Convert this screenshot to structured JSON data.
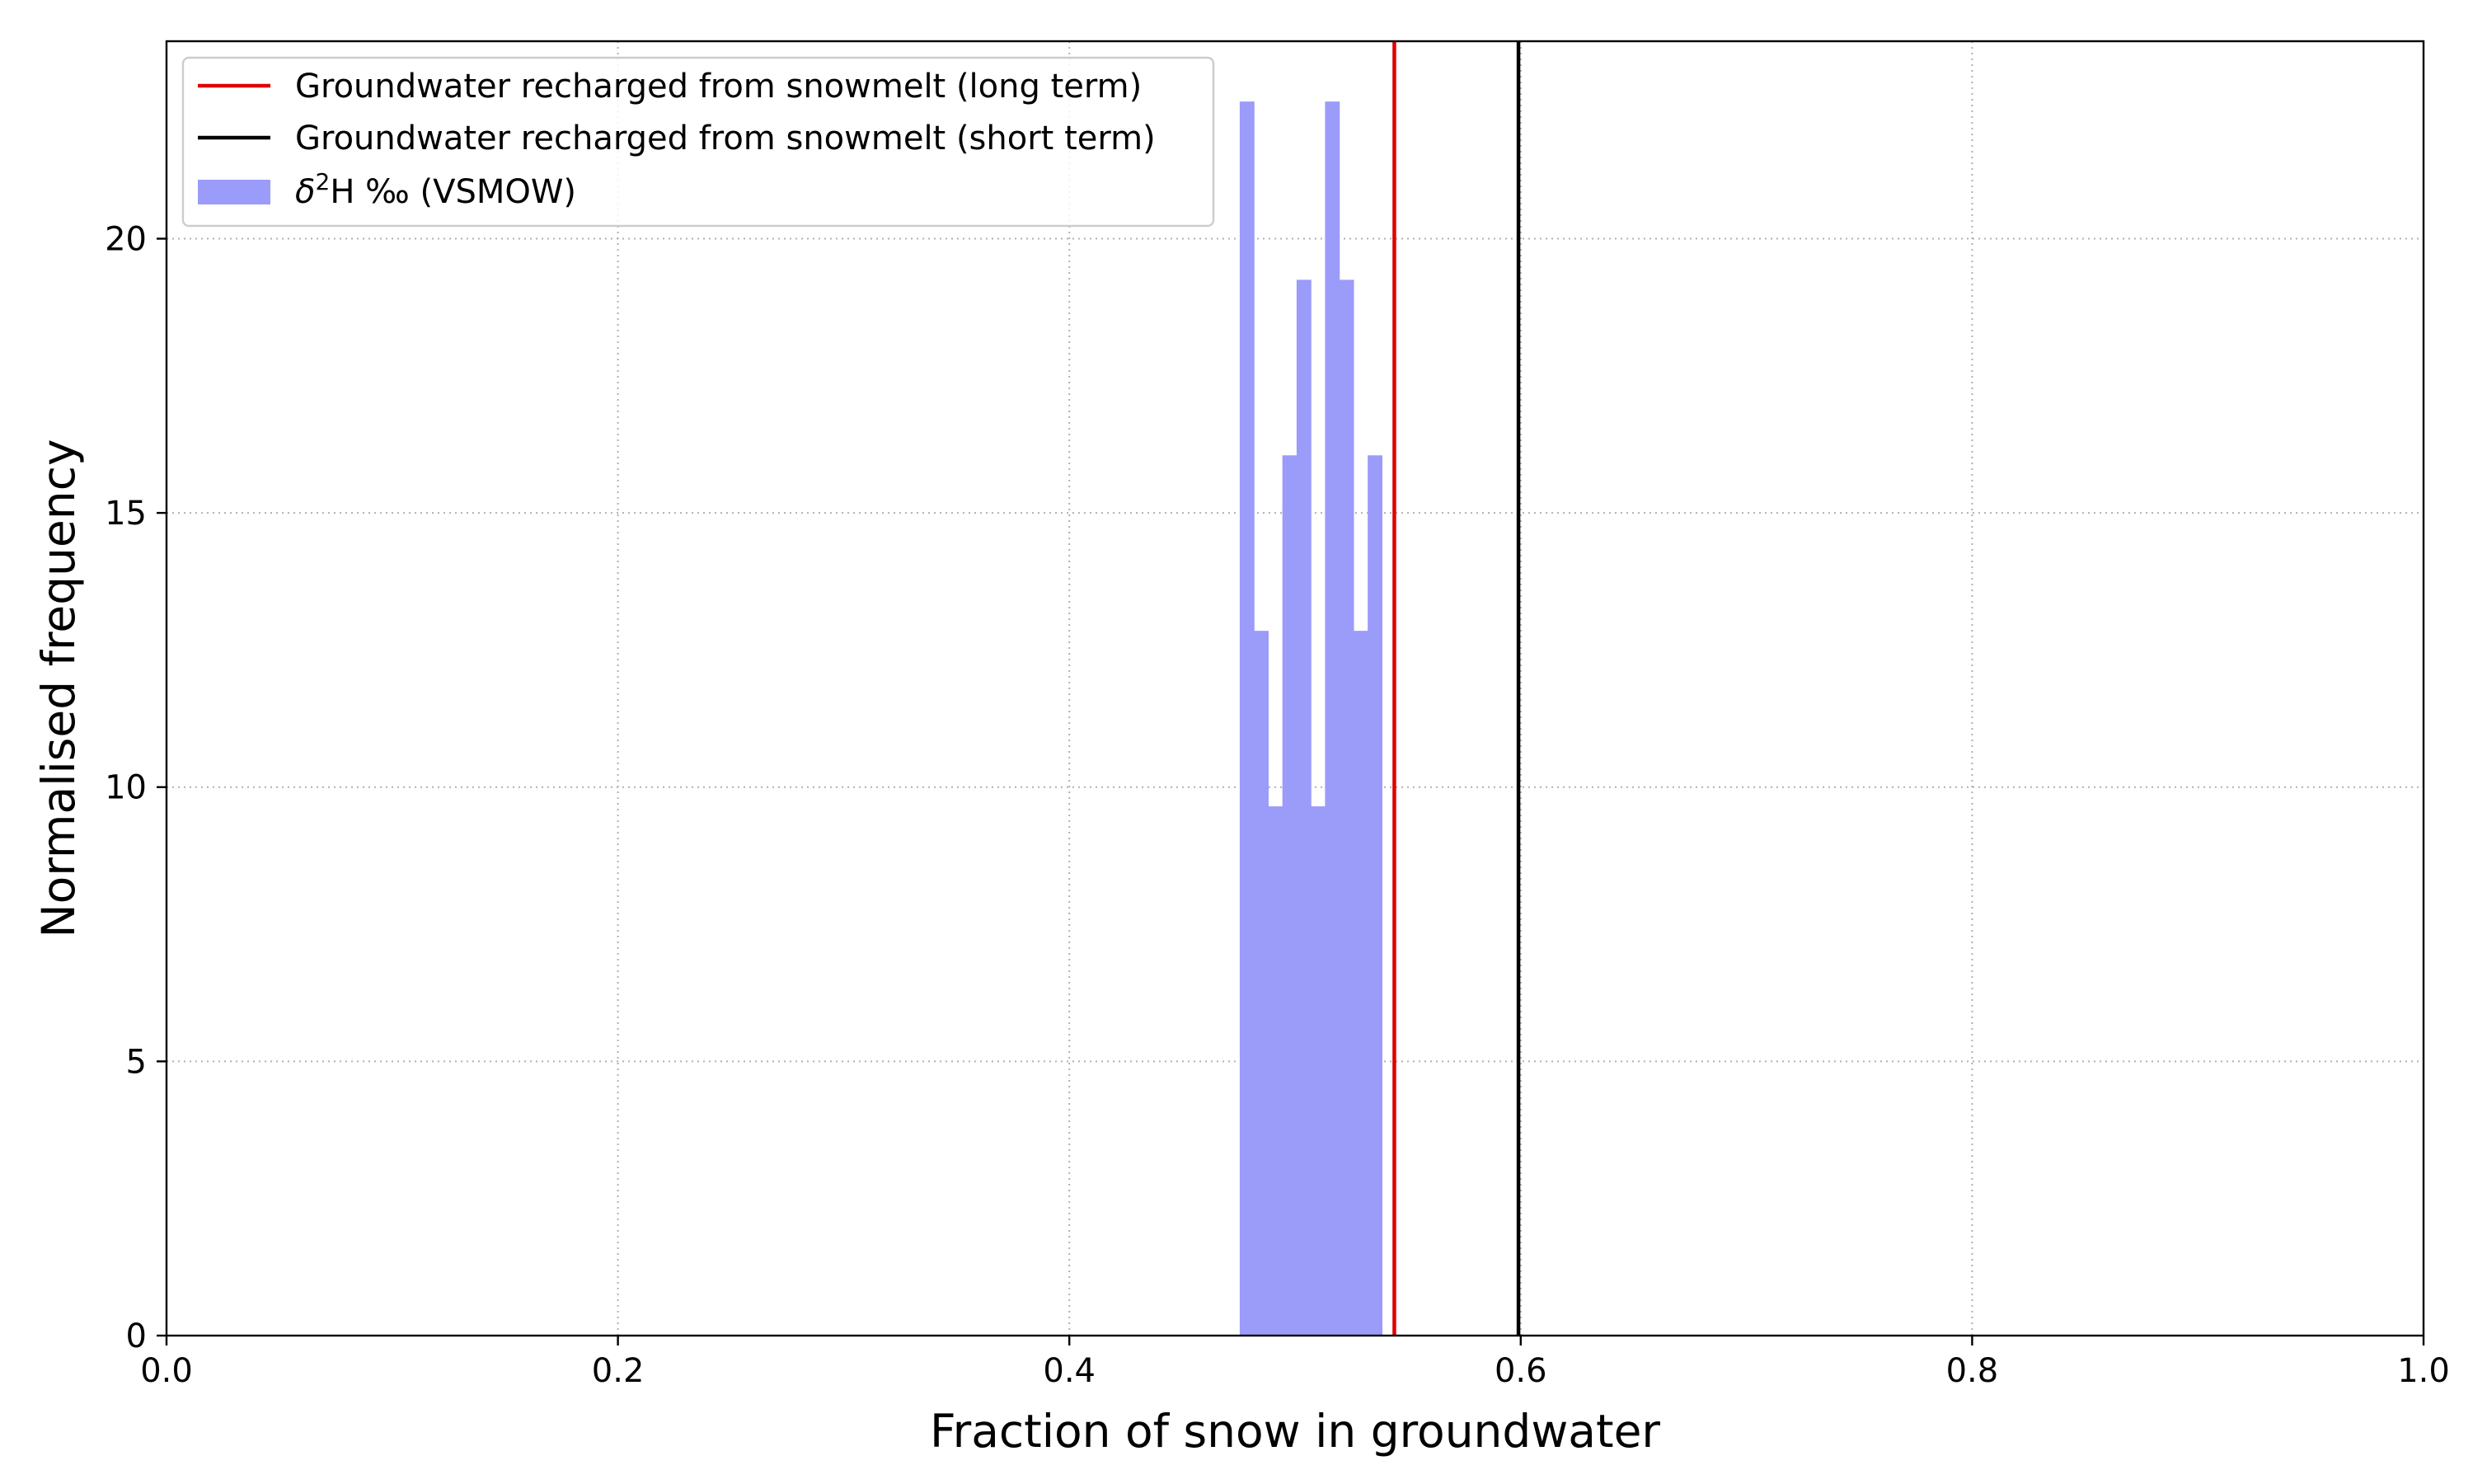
{
  "chart_data": {
    "type": "bar",
    "title": "",
    "xlabel": "Fraction of snow in groundwater",
    "ylabel": "Normalised frequency",
    "xlim": [
      0.0,
      1.0
    ],
    "ylim": [
      0,
      23.6
    ],
    "x_ticks": [
      "0.0",
      "0.2",
      "0.4",
      "0.6",
      "0.8",
      "1.0"
    ],
    "y_ticks": [
      "0",
      "5",
      "10",
      "15",
      "20"
    ],
    "grid": true,
    "legend_position": "top-left",
    "histogram": {
      "name_prefix": "δ",
      "name_superscript": "2",
      "name_suffix": "H ‰ (VSMOW)",
      "color": "#9b9bfa",
      "bin_edges": [
        0.4755,
        0.4818,
        0.4881,
        0.4944,
        0.5007,
        0.507,
        0.5133,
        0.5196,
        0.5259,
        0.5322,
        0.5385
      ],
      "values": [
        22.5,
        12.85,
        9.65,
        16.05,
        19.25,
        9.65,
        22.5,
        19.25,
        12.85,
        16.05
      ]
    },
    "series": [
      {
        "name": "Groundwater recharged from snowmelt (long term)",
        "type": "vertical-line",
        "x": 0.544,
        "color": "#e00000"
      },
      {
        "name": "Groundwater recharged from snowmelt (short term)",
        "type": "vertical-line",
        "x": 0.599,
        "color": "#000000"
      }
    ]
  }
}
